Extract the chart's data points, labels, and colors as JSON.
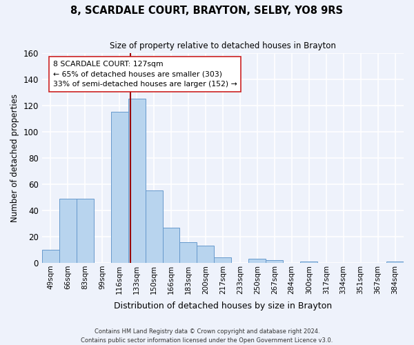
{
  "title": "8, SCARDALE COURT, BRAYTON, SELBY, YO8 9RS",
  "subtitle": "Size of property relative to detached houses in Brayton",
  "xlabel": "Distribution of detached houses by size in Brayton",
  "ylabel": "Number of detached properties",
  "bar_labels": [
    "49sqm",
    "66sqm",
    "83sqm",
    "99sqm",
    "116sqm",
    "133sqm",
    "150sqm",
    "166sqm",
    "183sqm",
    "200sqm",
    "217sqm",
    "233sqm",
    "250sqm",
    "267sqm",
    "284sqm",
    "300sqm",
    "317sqm",
    "334sqm",
    "351sqm",
    "367sqm",
    "384sqm"
  ],
  "bar_values": [
    10,
    49,
    49,
    0,
    115,
    125,
    55,
    27,
    16,
    13,
    4,
    0,
    3,
    2,
    0,
    1,
    0,
    0,
    0,
    0,
    1
  ],
  "bar_color": "#b8d4ee",
  "bar_edge_color": "#6699cc",
  "property_line_color": "#990000",
  "annotation_title": "8 SCARDALE COURT: 127sqm",
  "annotation_line1": "← 65% of detached houses are smaller (303)",
  "annotation_line2": "33% of semi-detached houses are larger (152) →",
  "annotation_box_color": "#ffffff",
  "annotation_box_edge": "#cc2222",
  "ylim": [
    0,
    160
  ],
  "yticks": [
    0,
    20,
    40,
    60,
    80,
    100,
    120,
    140,
    160
  ],
  "footer1": "Contains HM Land Registry data © Crown copyright and database right 2024.",
  "footer2": "Contains public sector information licensed under the Open Government Licence v3.0.",
  "background_color": "#eef2fb",
  "grid_color": "#ffffff"
}
